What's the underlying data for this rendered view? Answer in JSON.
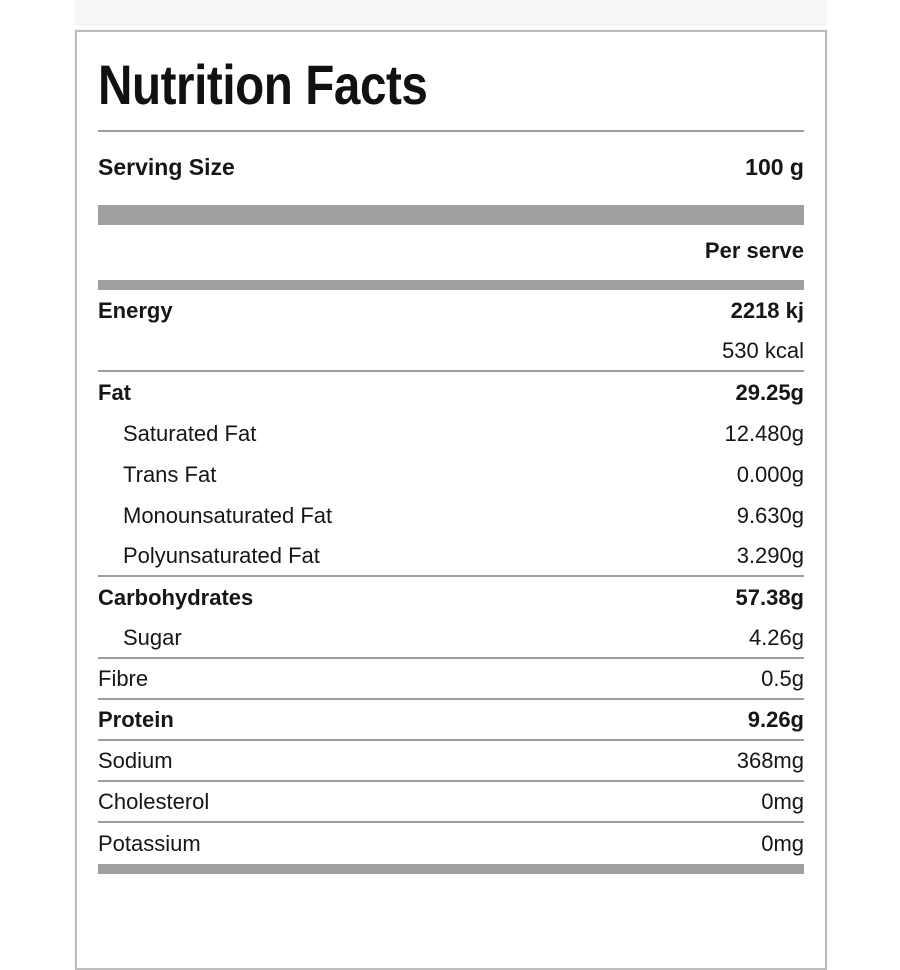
{
  "card": {
    "title": "Nutrition Facts",
    "serving": {
      "label": "Serving Size",
      "value": "100 g"
    },
    "column_header": "Per serve",
    "rows": [
      {
        "label": "Energy",
        "value": "2218 kj"
      },
      {
        "label": "",
        "value": "530 kcal"
      },
      {
        "label": "Fat",
        "value": "29.25g"
      },
      {
        "label": "Saturated Fat",
        "value": "12.480g"
      },
      {
        "label": "Trans Fat",
        "value": "0.000g"
      },
      {
        "label": "Monounsaturated Fat",
        "value": "9.630g"
      },
      {
        "label": "Polyunsaturated Fat",
        "value": "3.290g"
      },
      {
        "label": "Carbohydrates",
        "value": "57.38g"
      },
      {
        "label": "Sugar",
        "value": "4.26g"
      },
      {
        "label": "Fibre",
        "value": "0.5g"
      },
      {
        "label": "Protein",
        "value": "9.26g"
      },
      {
        "label": "Sodium",
        "value": "368mg"
      },
      {
        "label": "Cholesterol",
        "value": "0mg"
      },
      {
        "label": "Potassium",
        "value": "0mg"
      }
    ],
    "colors": {
      "text": "#161616",
      "separator_bar": "#a0a0a0",
      "divider": "#9e9e9e",
      "card_border": "#bdbdbd",
      "top_strip_background": "#f7f7f7"
    }
  }
}
